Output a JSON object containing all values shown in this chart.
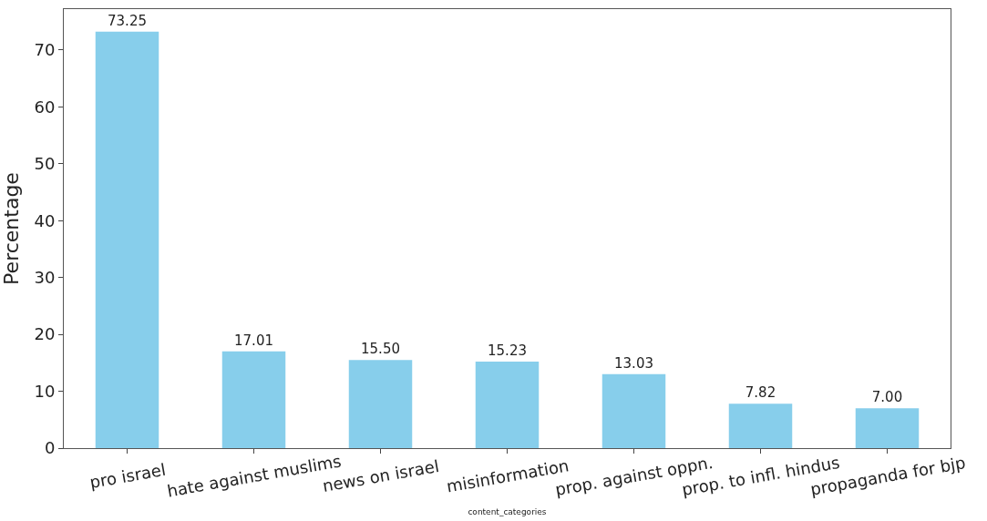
{
  "chart_data": {
    "type": "bar",
    "categories": [
      "pro israel",
      "hate against muslims",
      "news on israel",
      "misinformation",
      "prop. against oppn.",
      "prop. to infl. hindus",
      "propaganda for bjp"
    ],
    "values": [
      73.25,
      17.01,
      15.5,
      15.23,
      13.03,
      7.82,
      7.0
    ],
    "value_labels": [
      "73.25",
      "17.01",
      "15.50",
      "15.23",
      "13.03",
      "7.82",
      "7.00"
    ],
    "color": "#87ceeb",
    "xlabel": "content_categories",
    "ylabel": "Percentage",
    "ylim": [
      0,
      77.2
    ],
    "yticks": [
      0,
      10,
      20,
      30,
      40,
      50,
      60,
      70
    ],
    "grid": false
  }
}
